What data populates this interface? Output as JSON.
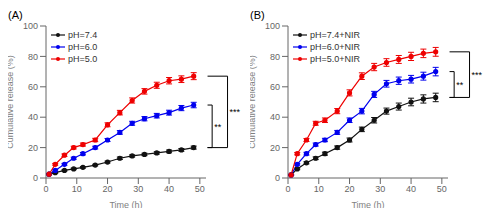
{
  "chart_data": [
    {
      "type": "line",
      "title": "(A)",
      "x_label": "Time (h)",
      "y_label": "Cumulative release (%)",
      "xlim": [
        0,
        52
      ],
      "ylim": [
        0,
        100
      ],
      "xticks": [
        0,
        10,
        20,
        30,
        40,
        50
      ],
      "yticks": [
        0,
        20,
        40,
        60,
        80,
        100
      ],
      "grid": false,
      "legend": "upper left",
      "marker": "circle",
      "x": [
        1,
        3,
        6,
        9,
        12,
        16,
        20,
        24,
        28,
        32,
        36,
        40,
        44,
        48
      ],
      "series": [
        {
          "name": "pH=7.4",
          "color": "#111111",
          "values": [
            2.5,
            3.5,
            5.0,
            6.0,
            7.0,
            8.5,
            10.5,
            13.0,
            14.5,
            15.5,
            16.5,
            17.5,
            18.5,
            20.0
          ],
          "yerr": [
            0.3,
            0.4,
            0.4,
            0.5,
            0.5,
            0.5,
            0.6,
            0.8,
            0.7,
            0.8,
            0.8,
            0.9,
            0.9,
            1.0
          ]
        },
        {
          "name": "pH=6.0",
          "color": "#0000ee",
          "values": [
            2.5,
            5.0,
            9.0,
            13.0,
            16.0,
            20.0,
            25.0,
            30.0,
            36.0,
            39.0,
            41.0,
            43.0,
            46.0,
            48.0
          ],
          "yerr": [
            0.3,
            0.5,
            0.6,
            0.7,
            0.8,
            0.9,
            1.0,
            1.2,
            1.3,
            1.4,
            1.5,
            1.6,
            1.7,
            1.8
          ]
        },
        {
          "name": "pH=5.0",
          "color": "#ee0000",
          "values": [
            2.5,
            9.0,
            15.0,
            20.0,
            22.0,
            25.0,
            35.0,
            43.0,
            51.0,
            57.0,
            61.0,
            64.0,
            65.0,
            67.0
          ],
          "yerr": [
            0.3,
            0.6,
            0.8,
            0.9,
            1.0,
            1.1,
            1.3,
            1.5,
            1.7,
            1.8,
            2.0,
            2.1,
            2.2,
            2.3
          ]
        }
      ],
      "brackets": [
        {
          "label": "***",
          "low": 20.0,
          "high": 67.0
        },
        {
          "label": "**",
          "low": 20.0,
          "high": 48.0
        }
      ]
    },
    {
      "type": "line",
      "title": "(B)",
      "x_label": "Time (h)",
      "y_label": "Cumulative release (%)",
      "xlim": [
        0,
        52
      ],
      "ylim": [
        0,
        100
      ],
      "xticks": [
        0,
        10,
        20,
        30,
        40,
        50
      ],
      "yticks": [
        0,
        20,
        40,
        60,
        80,
        100
      ],
      "grid": false,
      "legend": "upper left",
      "marker": "circle",
      "x": [
        1,
        3,
        6,
        9,
        12,
        16,
        20,
        24,
        28,
        32,
        36,
        40,
        44,
        48
      ],
      "series": [
        {
          "name": "pH=7.4+NIR",
          "color": "#111111",
          "values": [
            2.0,
            6.0,
            10.0,
            13.0,
            16.0,
            20.0,
            25.0,
            32.0,
            38.0,
            44.0,
            47.0,
            50.0,
            52.0,
            53.0
          ],
          "yerr": [
            0.3,
            0.5,
            0.7,
            0.9,
            1.0,
            1.1,
            1.3,
            1.5,
            1.8,
            2.0,
            2.3,
            2.5,
            2.7,
            2.8
          ]
        },
        {
          "name": "pH=6.0+NIR",
          "color": "#0000ee",
          "values": [
            2.0,
            9.0,
            16.0,
            22.0,
            25.0,
            30.0,
            38.0,
            44.0,
            55.0,
            62.0,
            64.0,
            65.0,
            67.0,
            70.0
          ],
          "yerr": [
            0.3,
            0.6,
            0.9,
            1.0,
            1.1,
            1.3,
            1.5,
            1.8,
            2.0,
            2.2,
            2.4,
            2.5,
            2.6,
            2.8
          ]
        },
        {
          "name": "pH=5.0+NIR",
          "color": "#ee0000",
          "values": [
            2.0,
            16.0,
            25.0,
            36.0,
            38.0,
            44.0,
            56.0,
            67.0,
            73.0,
            76.0,
            78.0,
            80.0,
            82.0,
            83.0
          ],
          "yerr": [
            0.3,
            0.8,
            1.0,
            1.3,
            1.5,
            1.7,
            2.0,
            2.2,
            2.4,
            2.5,
            2.6,
            2.7,
            2.8,
            2.9
          ]
        }
      ],
      "brackets": [
        {
          "label": "***",
          "low": 53.0,
          "high": 83.0
        },
        {
          "label": "**",
          "low": 53.0,
          "high": 70.0
        }
      ]
    }
  ]
}
